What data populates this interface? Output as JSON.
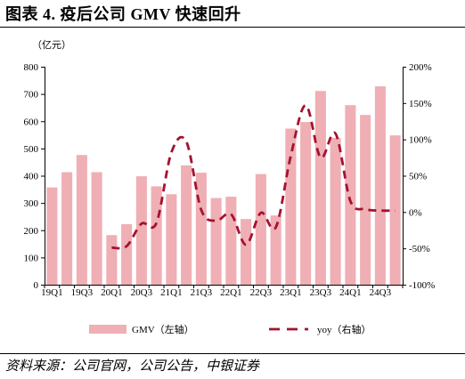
{
  "title": "图表 4. 疫后公司 GMV 快速回升",
  "source": "资料来源：公司官网，公司公告，中银证券",
  "chart_data": {
    "type": "bar",
    "x_tick_labels": [
      "19Q1",
      "19Q3",
      "20Q1",
      "20Q3",
      "21Q1",
      "21Q3",
      "22Q1",
      "22Q3",
      "23Q1",
      "23Q3",
      "24Q1",
      "24Q3"
    ],
    "left_axis": {
      "unit_label": "（亿元）",
      "ylim": [
        0,
        800
      ],
      "ticks": [
        0,
        100,
        200,
        300,
        400,
        500,
        600,
        700,
        800
      ]
    },
    "right_axis": {
      "ylim": [
        -100,
        200
      ],
      "ticks": [
        "-100%",
        "-50%",
        "0%",
        "50%",
        "100%",
        "150%",
        "200%"
      ]
    },
    "series": [
      {
        "name": "GMV（左轴）",
        "type": "bar",
        "axis": "left",
        "color": "#efafb4",
        "values": [
          357,
          413,
          476,
          413,
          182,
          222,
          398,
          361,
          332,
          438,
          411,
          318,
          323,
          241,
          406,
          254,
          573,
          597,
          711,
          539,
          659,
          623,
          728,
          548
        ]
      },
      {
        "name": "yoy（右轴）",
        "type": "line",
        "axis": "right",
        "line_style": "dashed",
        "color": "#a3122f",
        "values": [
          null,
          null,
          null,
          null,
          -49,
          -47,
          -16,
          -15,
          82,
          97,
          3,
          -12,
          -3,
          -45,
          -1,
          -21,
          77,
          147,
          75,
          108,
          15,
          4,
          2,
          2
        ]
      }
    ],
    "legend": "bottom-center",
    "grid": false
  }
}
